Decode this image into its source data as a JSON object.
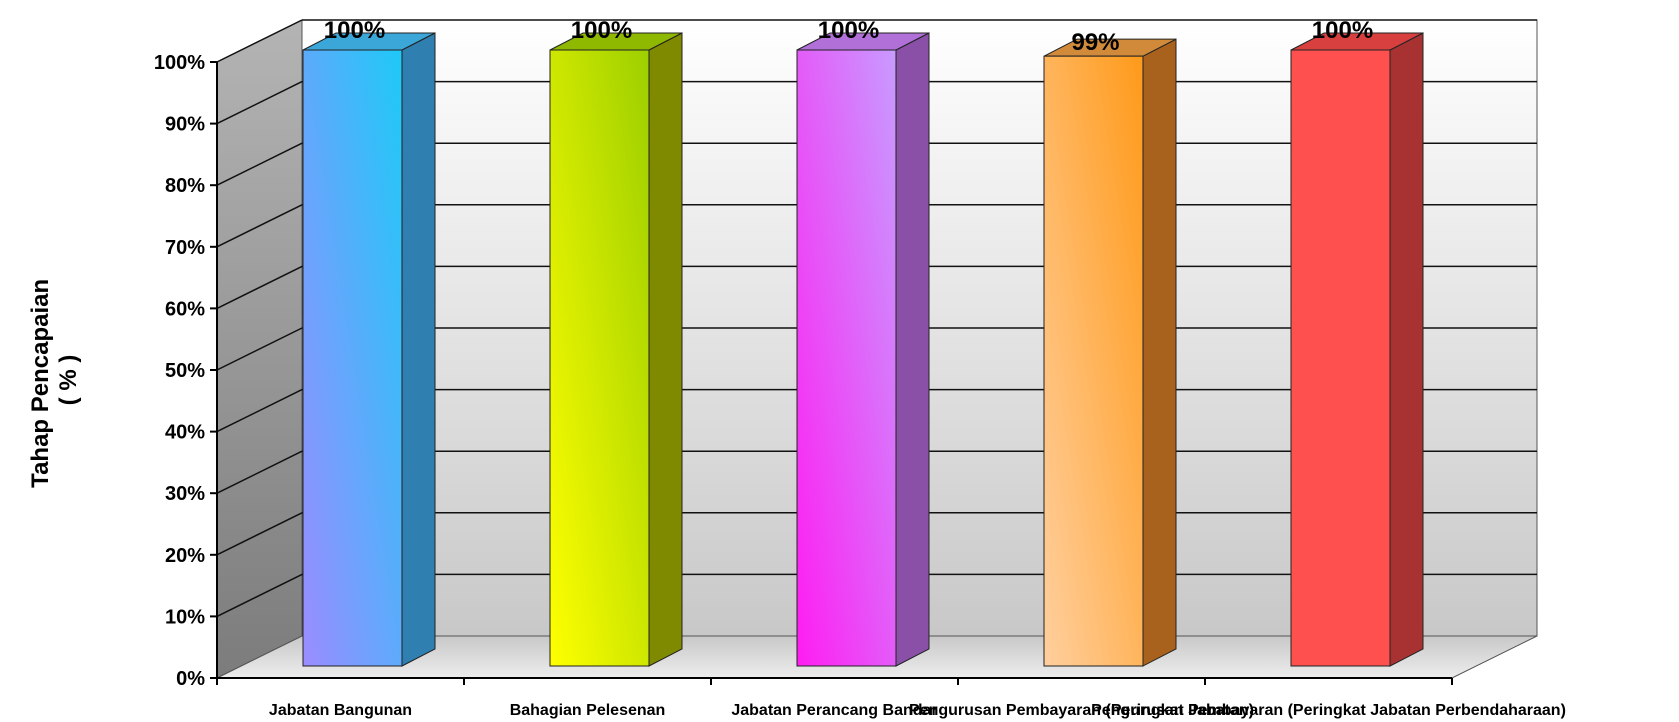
{
  "chart_data": {
    "type": "bar",
    "ylabel_lines": [
      "Tahap Pencapaian",
      "( % )"
    ],
    "ylim": [
      0,
      100
    ],
    "yticks": [
      "0%",
      "10%",
      "20%",
      "30%",
      "40%",
      "50%",
      "60%",
      "70%",
      "80%",
      "90%",
      "100%"
    ],
    "categories": [
      "Jabatan Bangunan",
      "Bahagian Pelesenan",
      "Jabatan Perancang Bandar",
      "Pengurusan Pembayaran (Peringkat Jabatan)",
      "Pengurusan Pembayaran (Peringkat Jabatan Perbendaharaan)"
    ],
    "values": [
      100,
      100,
      100,
      99,
      100
    ],
    "data_labels": [
      "100%",
      "100%",
      "100%",
      "99%",
      "100%"
    ],
    "grid": true,
    "style": "3d",
    "bar_colors": [
      {
        "front_top": "#1ec9f7",
        "front_bottom": "#9b8cff",
        "side": "#2f7fb0",
        "top": "#3aa7d8"
      },
      {
        "front_top": "#9dcf00",
        "front_bottom": "#ffff00",
        "side": "#7f8a00",
        "top": "#8fb800"
      },
      {
        "front_top": "#c89bff",
        "front_bottom": "#ff1cf2",
        "side": "#8a50a8",
        "top": "#b070d8"
      },
      {
        "front_top": "#ff9a1a",
        "front_bottom": "#ffcf9e",
        "side": "#a8621e",
        "top": "#d08a3a"
      },
      {
        "front_top": "#ff5050",
        "front_bottom": "#ff5050",
        "side": "#a83232",
        "top": "#d84040"
      }
    ]
  }
}
